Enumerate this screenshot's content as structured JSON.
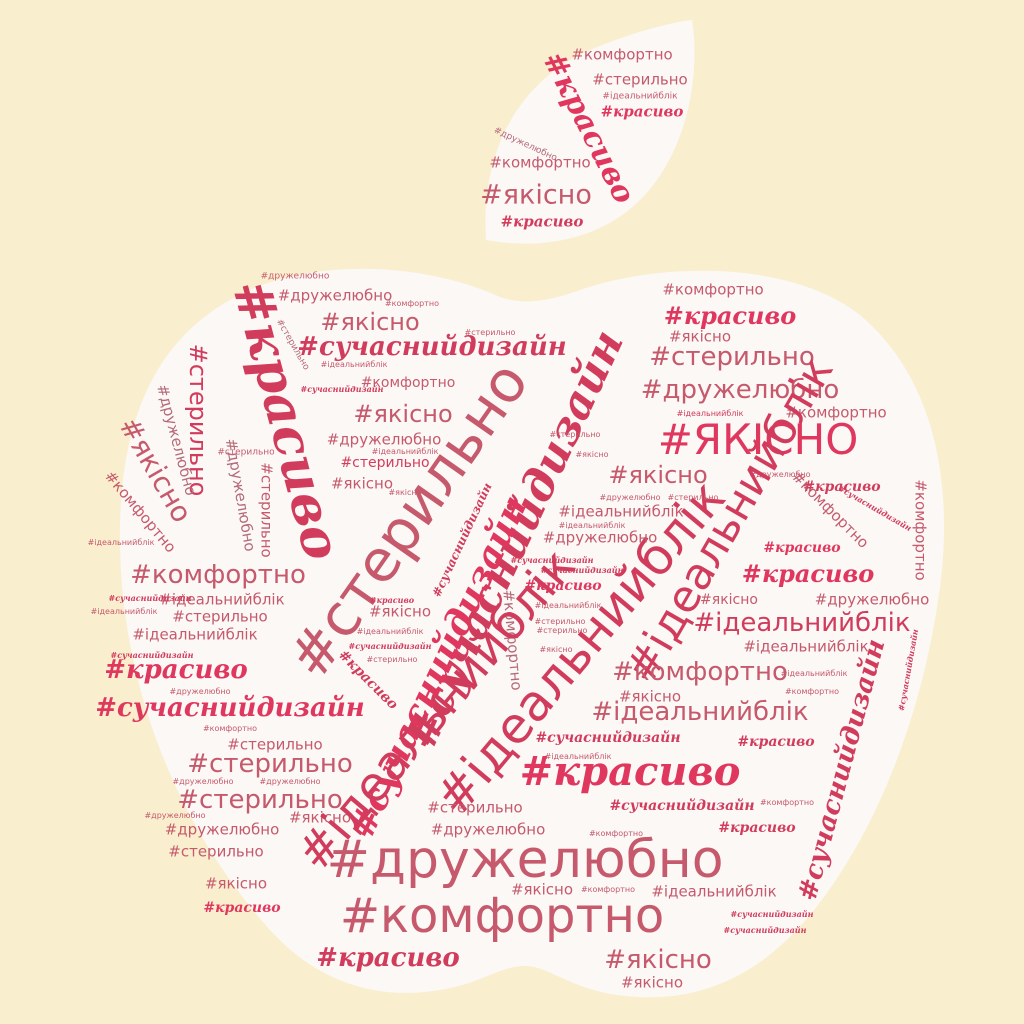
{
  "colors": {
    "background": "#f9efcf",
    "apple_fill": "#fbf8f6",
    "red": "#e0375e",
    "crimson": "#d23c5c",
    "rose": "#c65a6c",
    "mauve": "#b56a78"
  },
  "words": {
    "krasyvo": "#красиво",
    "suchasnyi_dyzain": "#сучаснийдизайн",
    "yakisno": "#якісно",
    "yakisno_caps": "#ЯКІСНО",
    "komfortno": "#комфортно",
    "sterylno": "#стерильно",
    "druzhelyubno": "#дружелюбно",
    "idealnyi_blik": "#ідеальнийблік"
  }
}
